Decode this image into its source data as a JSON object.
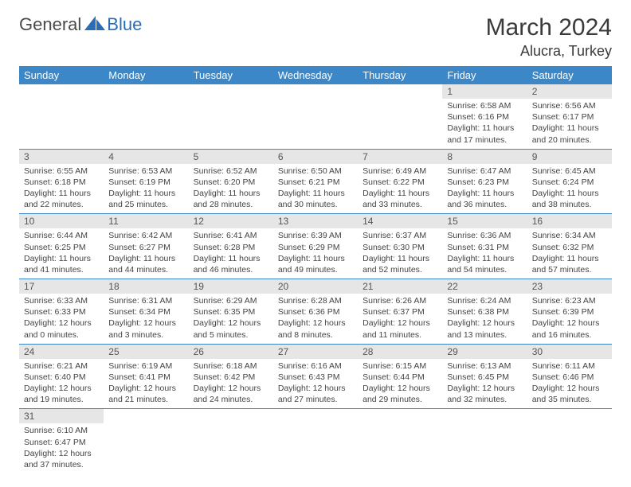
{
  "brand": {
    "part1": "General",
    "part2": "Blue"
  },
  "title": "March 2024",
  "location": "Alucra, Turkey",
  "header_bg": "#3b87c8",
  "day_header_bg": "#e6e6e6",
  "border_color": "#3b87c8",
  "weekdays": [
    "Sunday",
    "Monday",
    "Tuesday",
    "Wednesday",
    "Thursday",
    "Friday",
    "Saturday"
  ],
  "weeks": [
    [
      null,
      null,
      null,
      null,
      null,
      {
        "d": "1",
        "sr": "6:58 AM",
        "ss": "6:16 PM",
        "dl": "11 hours and 17 minutes."
      },
      {
        "d": "2",
        "sr": "6:56 AM",
        "ss": "6:17 PM",
        "dl": "11 hours and 20 minutes."
      }
    ],
    [
      {
        "d": "3",
        "sr": "6:55 AM",
        "ss": "6:18 PM",
        "dl": "11 hours and 22 minutes."
      },
      {
        "d": "4",
        "sr": "6:53 AM",
        "ss": "6:19 PM",
        "dl": "11 hours and 25 minutes."
      },
      {
        "d": "5",
        "sr": "6:52 AM",
        "ss": "6:20 PM",
        "dl": "11 hours and 28 minutes."
      },
      {
        "d": "6",
        "sr": "6:50 AM",
        "ss": "6:21 PM",
        "dl": "11 hours and 30 minutes."
      },
      {
        "d": "7",
        "sr": "6:49 AM",
        "ss": "6:22 PM",
        "dl": "11 hours and 33 minutes."
      },
      {
        "d": "8",
        "sr": "6:47 AM",
        "ss": "6:23 PM",
        "dl": "11 hours and 36 minutes."
      },
      {
        "d": "9",
        "sr": "6:45 AM",
        "ss": "6:24 PM",
        "dl": "11 hours and 38 minutes."
      }
    ],
    [
      {
        "d": "10",
        "sr": "6:44 AM",
        "ss": "6:25 PM",
        "dl": "11 hours and 41 minutes."
      },
      {
        "d": "11",
        "sr": "6:42 AM",
        "ss": "6:27 PM",
        "dl": "11 hours and 44 minutes."
      },
      {
        "d": "12",
        "sr": "6:41 AM",
        "ss": "6:28 PM",
        "dl": "11 hours and 46 minutes."
      },
      {
        "d": "13",
        "sr": "6:39 AM",
        "ss": "6:29 PM",
        "dl": "11 hours and 49 minutes."
      },
      {
        "d": "14",
        "sr": "6:37 AM",
        "ss": "6:30 PM",
        "dl": "11 hours and 52 minutes."
      },
      {
        "d": "15",
        "sr": "6:36 AM",
        "ss": "6:31 PM",
        "dl": "11 hours and 54 minutes."
      },
      {
        "d": "16",
        "sr": "6:34 AM",
        "ss": "6:32 PM",
        "dl": "11 hours and 57 minutes."
      }
    ],
    [
      {
        "d": "17",
        "sr": "6:33 AM",
        "ss": "6:33 PM",
        "dl": "12 hours and 0 minutes."
      },
      {
        "d": "18",
        "sr": "6:31 AM",
        "ss": "6:34 PM",
        "dl": "12 hours and 3 minutes."
      },
      {
        "d": "19",
        "sr": "6:29 AM",
        "ss": "6:35 PM",
        "dl": "12 hours and 5 minutes."
      },
      {
        "d": "20",
        "sr": "6:28 AM",
        "ss": "6:36 PM",
        "dl": "12 hours and 8 minutes."
      },
      {
        "d": "21",
        "sr": "6:26 AM",
        "ss": "6:37 PM",
        "dl": "12 hours and 11 minutes."
      },
      {
        "d": "22",
        "sr": "6:24 AM",
        "ss": "6:38 PM",
        "dl": "12 hours and 13 minutes."
      },
      {
        "d": "23",
        "sr": "6:23 AM",
        "ss": "6:39 PM",
        "dl": "12 hours and 16 minutes."
      }
    ],
    [
      {
        "d": "24",
        "sr": "6:21 AM",
        "ss": "6:40 PM",
        "dl": "12 hours and 19 minutes."
      },
      {
        "d": "25",
        "sr": "6:19 AM",
        "ss": "6:41 PM",
        "dl": "12 hours and 21 minutes."
      },
      {
        "d": "26",
        "sr": "6:18 AM",
        "ss": "6:42 PM",
        "dl": "12 hours and 24 minutes."
      },
      {
        "d": "27",
        "sr": "6:16 AM",
        "ss": "6:43 PM",
        "dl": "12 hours and 27 minutes."
      },
      {
        "d": "28",
        "sr": "6:15 AM",
        "ss": "6:44 PM",
        "dl": "12 hours and 29 minutes."
      },
      {
        "d": "29",
        "sr": "6:13 AM",
        "ss": "6:45 PM",
        "dl": "12 hours and 32 minutes."
      },
      {
        "d": "30",
        "sr": "6:11 AM",
        "ss": "6:46 PM",
        "dl": "12 hours and 35 minutes."
      }
    ],
    [
      {
        "d": "31",
        "sr": "6:10 AM",
        "ss": "6:47 PM",
        "dl": "12 hours and 37 minutes."
      },
      null,
      null,
      null,
      null,
      null,
      null
    ]
  ],
  "labels": {
    "sunrise": "Sunrise:",
    "sunset": "Sunset:",
    "daylight": "Daylight:"
  }
}
